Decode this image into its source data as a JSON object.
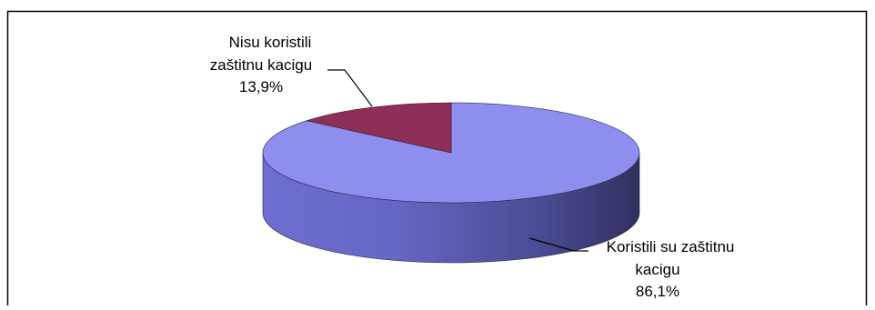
{
  "chart_data": {
    "type": "pie",
    "title": "",
    "slices": [
      {
        "label_lines": [
          "Nisu koristili",
          "zaštitnu kacigu"
        ],
        "value_text": "13,9%",
        "value": 13.9,
        "color": "#8E2F58"
      },
      {
        "label_lines": [
          "Koristili su zaštitnu",
          "kacigu"
        ],
        "value_text": "86,1%",
        "value": 86.1,
        "color": "#8E8EEE"
      }
    ]
  }
}
